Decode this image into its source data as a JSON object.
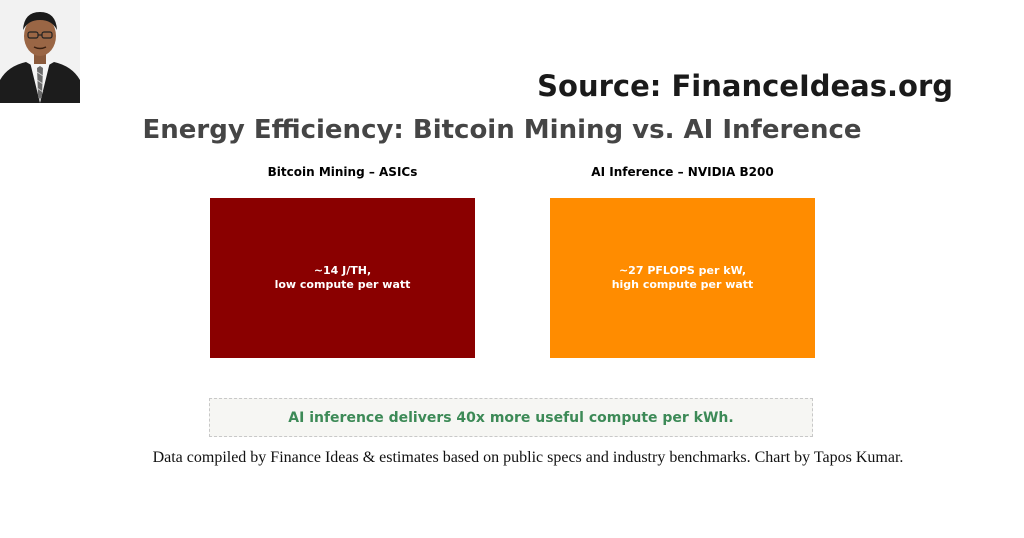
{
  "source_label": "Source: FinanceIdeas.org",
  "title": "Energy Efficiency: Bitcoin Mining vs. AI Inference",
  "panels": [
    {
      "title": "Bitcoin Mining – ASICs",
      "line1": "~14 J/TH,",
      "line2": "low compute per watt",
      "color": "#8a0000"
    },
    {
      "title": "AI Inference – NVIDIA B200",
      "line1": "~27 PFLOPS per kW,",
      "line2": "high compute per watt",
      "color": "#ff8c00"
    }
  ],
  "callout": "AI inference delivers 40x more useful compute per kWh.",
  "footnote": "Data compiled by Finance Ideas & estimates based on public specs and industry benchmarks. Chart by Tapos Kumar."
}
